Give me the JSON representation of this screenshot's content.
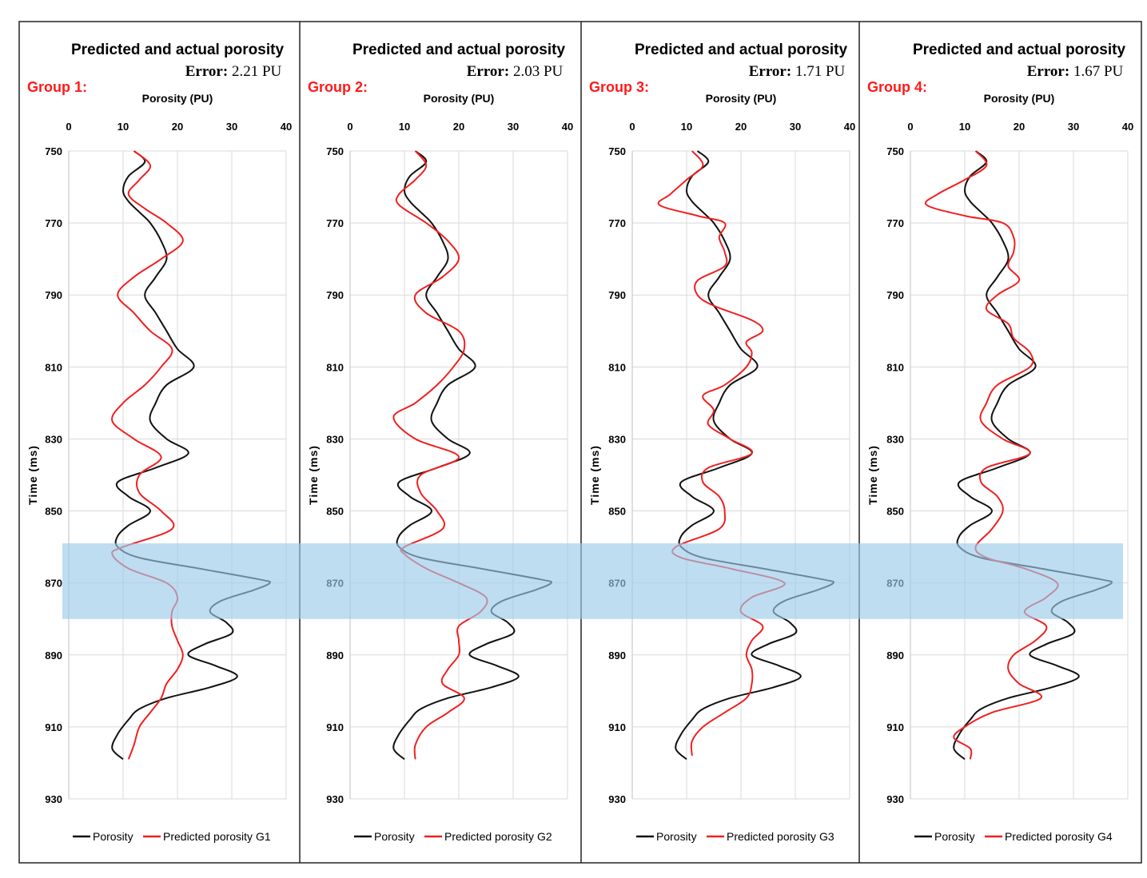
{
  "chart_data": {
    "type": "line",
    "shared_axes": {
      "xlabel": "Porosity (PU)",
      "ylabel": "Time (ms)",
      "xlim": [
        0,
        40
      ],
      "ylim": [
        750,
        930
      ],
      "xticks": [
        0,
        10,
        20,
        30,
        40
      ],
      "yticks": [
        750,
        770,
        790,
        810,
        830,
        850,
        870,
        890,
        910,
        930
      ],
      "highlight_band_ms": [
        859,
        880
      ],
      "grid": true
    },
    "actual_porosity": {
      "name": "Porosity",
      "t": [
        750,
        753,
        757,
        761,
        764,
        767,
        770,
        775,
        780,
        785,
        790,
        795,
        800,
        805,
        810,
        815,
        820,
        825,
        830,
        834,
        838,
        842,
        846,
        850,
        854,
        857,
        860,
        863,
        866,
        869,
        870,
        872,
        875,
        878,
        881,
        884,
        887,
        890,
        893,
        896,
        899,
        902,
        905,
        908,
        912,
        916,
        919
      ],
      "x": [
        12,
        14,
        11,
        10,
        11,
        13,
        15,
        17,
        18,
        16,
        14,
        16,
        18,
        20,
        23,
        18,
        16,
        15,
        18,
        22,
        16,
        9,
        11,
        15,
        11,
        9,
        9,
        13,
        24,
        35,
        37,
        34,
        28,
        26,
        29,
        30,
        25,
        22,
        27,
        31,
        26,
        18,
        13,
        11,
        9,
        8,
        10
      ]
    },
    "groups": [
      {
        "group_label": "Group 1:",
        "title": "Predicted and actual porosity",
        "error_label": "Error:",
        "error_value": "2.21 PU",
        "predicted_name": "Predicted porosity G1",
        "t": [
          750,
          754,
          758,
          762,
          766,
          770,
          775,
          780,
          785,
          790,
          795,
          800,
          805,
          810,
          815,
          820,
          825,
          830,
          835,
          840,
          845,
          850,
          855,
          860,
          862,
          866,
          870,
          874,
          878,
          882,
          886,
          890,
          894,
          898,
          902,
          906,
          910,
          915,
          919
        ],
        "x": [
          12,
          15,
          13,
          11,
          14,
          18,
          21,
          17,
          12,
          9,
          12,
          15,
          19,
          17,
          14,
          10,
          8,
          12,
          17,
          13,
          13,
          17,
          19,
          10,
          8,
          11,
          18,
          20,
          19,
          19,
          20,
          21,
          20,
          18,
          17,
          15,
          13,
          12,
          11
        ]
      },
      {
        "group_label": "Group 2:",
        "title": "Predicted and actual porosity",
        "error_label": "Error:",
        "error_value": "2.03 PU",
        "predicted_name": "Predicted porosity G2",
        "t": [
          750,
          754,
          758,
          762,
          765,
          770,
          775,
          780,
          785,
          790,
          795,
          800,
          805,
          810,
          815,
          820,
          824,
          830,
          835,
          840,
          845,
          850,
          855,
          860,
          862,
          866,
          870,
          874,
          878,
          882,
          886,
          890,
          894,
          898,
          902,
          906,
          910,
          915,
          919
        ],
        "x": [
          12,
          14,
          12,
          9,
          9,
          14,
          18,
          20,
          17,
          12,
          14,
          20,
          21,
          19,
          16,
          12,
          8,
          12,
          20,
          13,
          13,
          16,
          17,
          10,
          10,
          14,
          20,
          25,
          24,
          20,
          20,
          20,
          18,
          17,
          21,
          18,
          14,
          12,
          12
        ]
      },
      {
        "group_label": "Group 3:",
        "title": "Predicted and actual porosity",
        "error_label": "Error:",
        "error_value": "1.71 PU",
        "predicted_name": "Predicted porosity G3",
        "t": [
          750,
          754,
          758,
          762,
          765,
          768,
          770,
          774,
          778,
          782,
          786,
          790,
          793,
          797,
          800,
          803,
          806,
          810,
          815,
          818,
          822,
          826,
          830,
          834,
          838,
          842,
          846,
          850,
          855,
          860,
          863,
          866,
          870,
          874,
          878,
          882,
          886,
          890,
          894,
          898,
          902,
          906,
          910,
          914,
          918
        ],
        "x": [
          11,
          13,
          10,
          7,
          5,
          12,
          17,
          16,
          17,
          17,
          12,
          12,
          15,
          22,
          24,
          21,
          22,
          21,
          17,
          13,
          15,
          14,
          18,
          22,
          14,
          13,
          16,
          17,
          16,
          8,
          9,
          18,
          28,
          22,
          20,
          24,
          22,
          21,
          22,
          22,
          21,
          17,
          13,
          11,
          11
        ]
      },
      {
        "group_label": "Group 4:",
        "title": "Predicted and actual porosity",
        "error_label": "Error:",
        "error_value": "1.67 PU",
        "predicted_name": "Predicted porosity G4",
        "t": [
          750,
          754,
          758,
          762,
          765,
          768,
          770,
          774,
          778,
          782,
          786,
          790,
          794,
          798,
          802,
          806,
          810,
          815,
          820,
          825,
          830,
          834,
          838,
          842,
          846,
          850,
          855,
          860,
          863,
          866,
          870,
          874,
          878,
          882,
          886,
          890,
          894,
          898,
          902,
          906,
          910,
          913,
          916,
          919
        ],
        "x": [
          12,
          14,
          10,
          5,
          3,
          10,
          17,
          19,
          19,
          18,
          20,
          16,
          14,
          18,
          19,
          22,
          22,
          16,
          14,
          13,
          17,
          22,
          14,
          13,
          16,
          17,
          15,
          12,
          14,
          21,
          27,
          25,
          21,
          25,
          23,
          19,
          18,
          20,
          24,
          15,
          10,
          8,
          11,
          11
        ]
      }
    ]
  }
}
